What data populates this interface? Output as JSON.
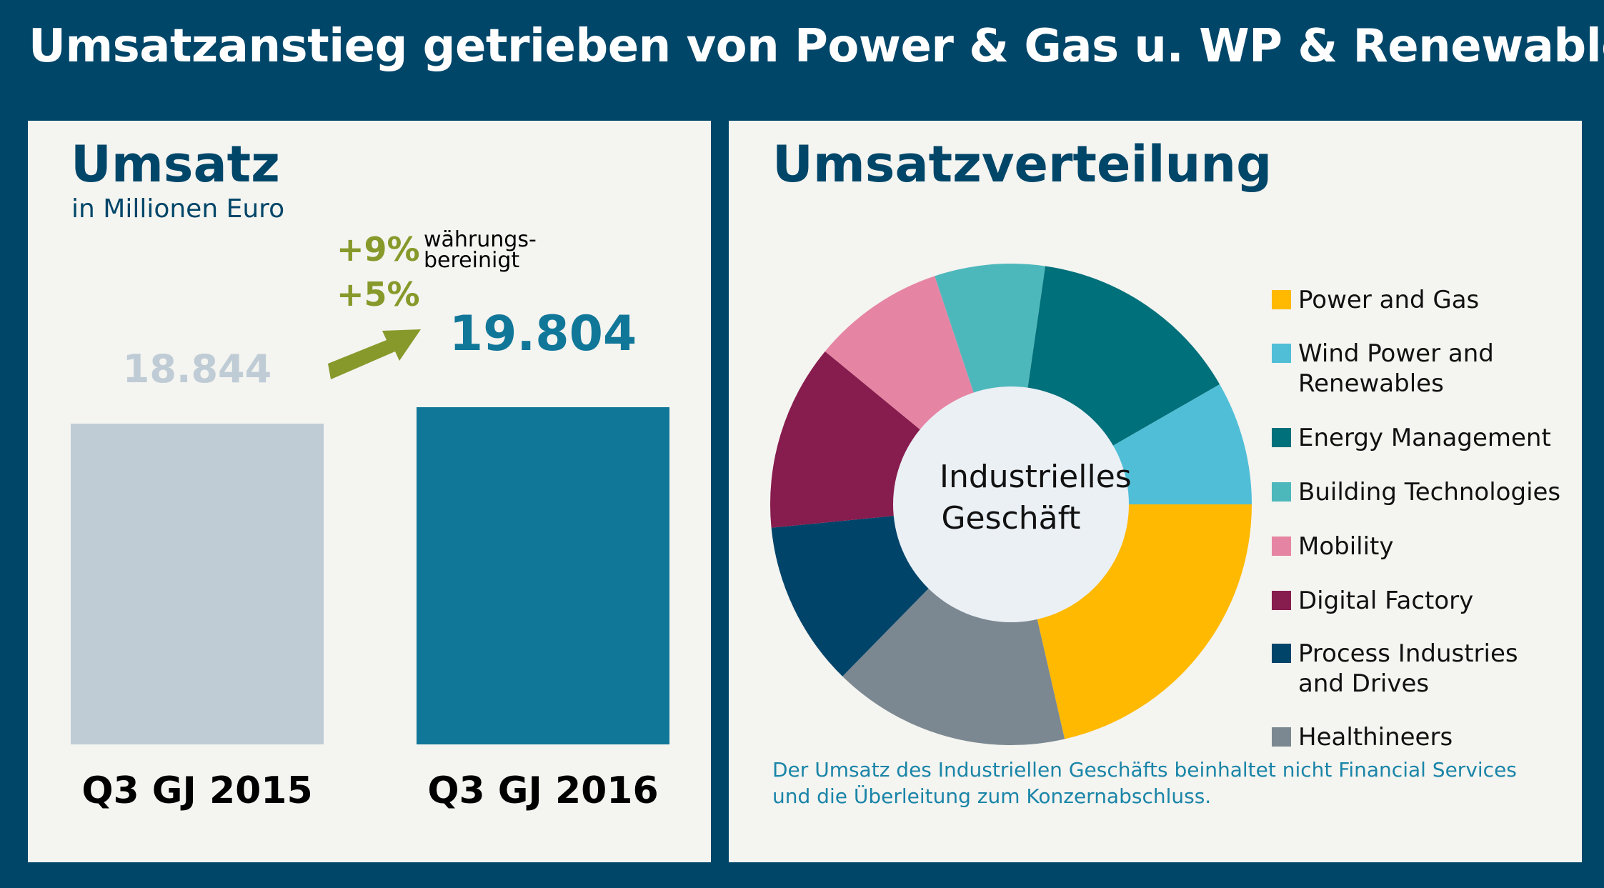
{
  "title": "Umsatzanstieg getrieben von Power & Gas u. WP & Renewables",
  "colors": {
    "background": "#004669",
    "panel": "#F4F4F0",
    "bar_2015": "#BFCCD6",
    "bar_2016": "#117799",
    "growth": "#86992A"
  },
  "chart_data": [
    {
      "type": "bar",
      "title": "Umsatz",
      "subtitle": "in Millionen Euro",
      "categories": [
        "Q3 GJ 2015",
        "Q3 GJ 2016"
      ],
      "values": [
        18844,
        19804
      ],
      "value_labels": [
        "18.844",
        "19.804"
      ],
      "colors": [
        "#BFCCD6",
        "#117799"
      ],
      "ylim": [
        0,
        19804
      ],
      "annotations": {
        "growth_fx_adjusted": "+9%",
        "growth_fx_note_1": "währungs-",
        "growth_fx_note_2": "bereinigt",
        "growth_nominal": "+5%",
        "arrow": "up-right"
      }
    },
    {
      "type": "pie",
      "style": "donut",
      "title": "Umsatzverteilung",
      "center_label_1": "Industrielles",
      "center_label_2": "Geschäft",
      "legend_position": "right",
      "slices": [
        {
          "label_1": "Power and Gas",
          "label_2": "",
          "value": 21.4,
          "color": "#FFB900"
        },
        {
          "label_1": "Healthineers",
          "label_2": "",
          "value": 15.9,
          "color": "#7C8891"
        },
        {
          "label_1": "Process Industries",
          "label_2": "and Drives",
          "value": 11.1,
          "color": "#00446A"
        },
        {
          "label_1": "Digital Factory",
          "label_2": "",
          "value": 12.5,
          "color": "#871C4E"
        },
        {
          "label_1": "Mobility",
          "label_2": "",
          "value": 8.9,
          "color": "#E685A3"
        },
        {
          "label_1": "Building Technologies",
          "label_2": "",
          "value": 7.4,
          "color": "#4DB8BC"
        },
        {
          "label_1": "Energy Management",
          "label_2": "",
          "value": 14.4,
          "color": "#00707A"
        },
        {
          "label_1": "Wind Power and",
          "label_2": "Renewables",
          "value": 8.3,
          "color": "#50BED7"
        }
      ],
      "legend_order": [
        0,
        7,
        6,
        5,
        4,
        3,
        2,
        1
      ],
      "footnote_1": "Der Umsatz des Industriellen Geschäfts beinhaltet nicht Financial Services",
      "footnote_2": "und die Überleitung zum Konzernabschluss."
    }
  ]
}
